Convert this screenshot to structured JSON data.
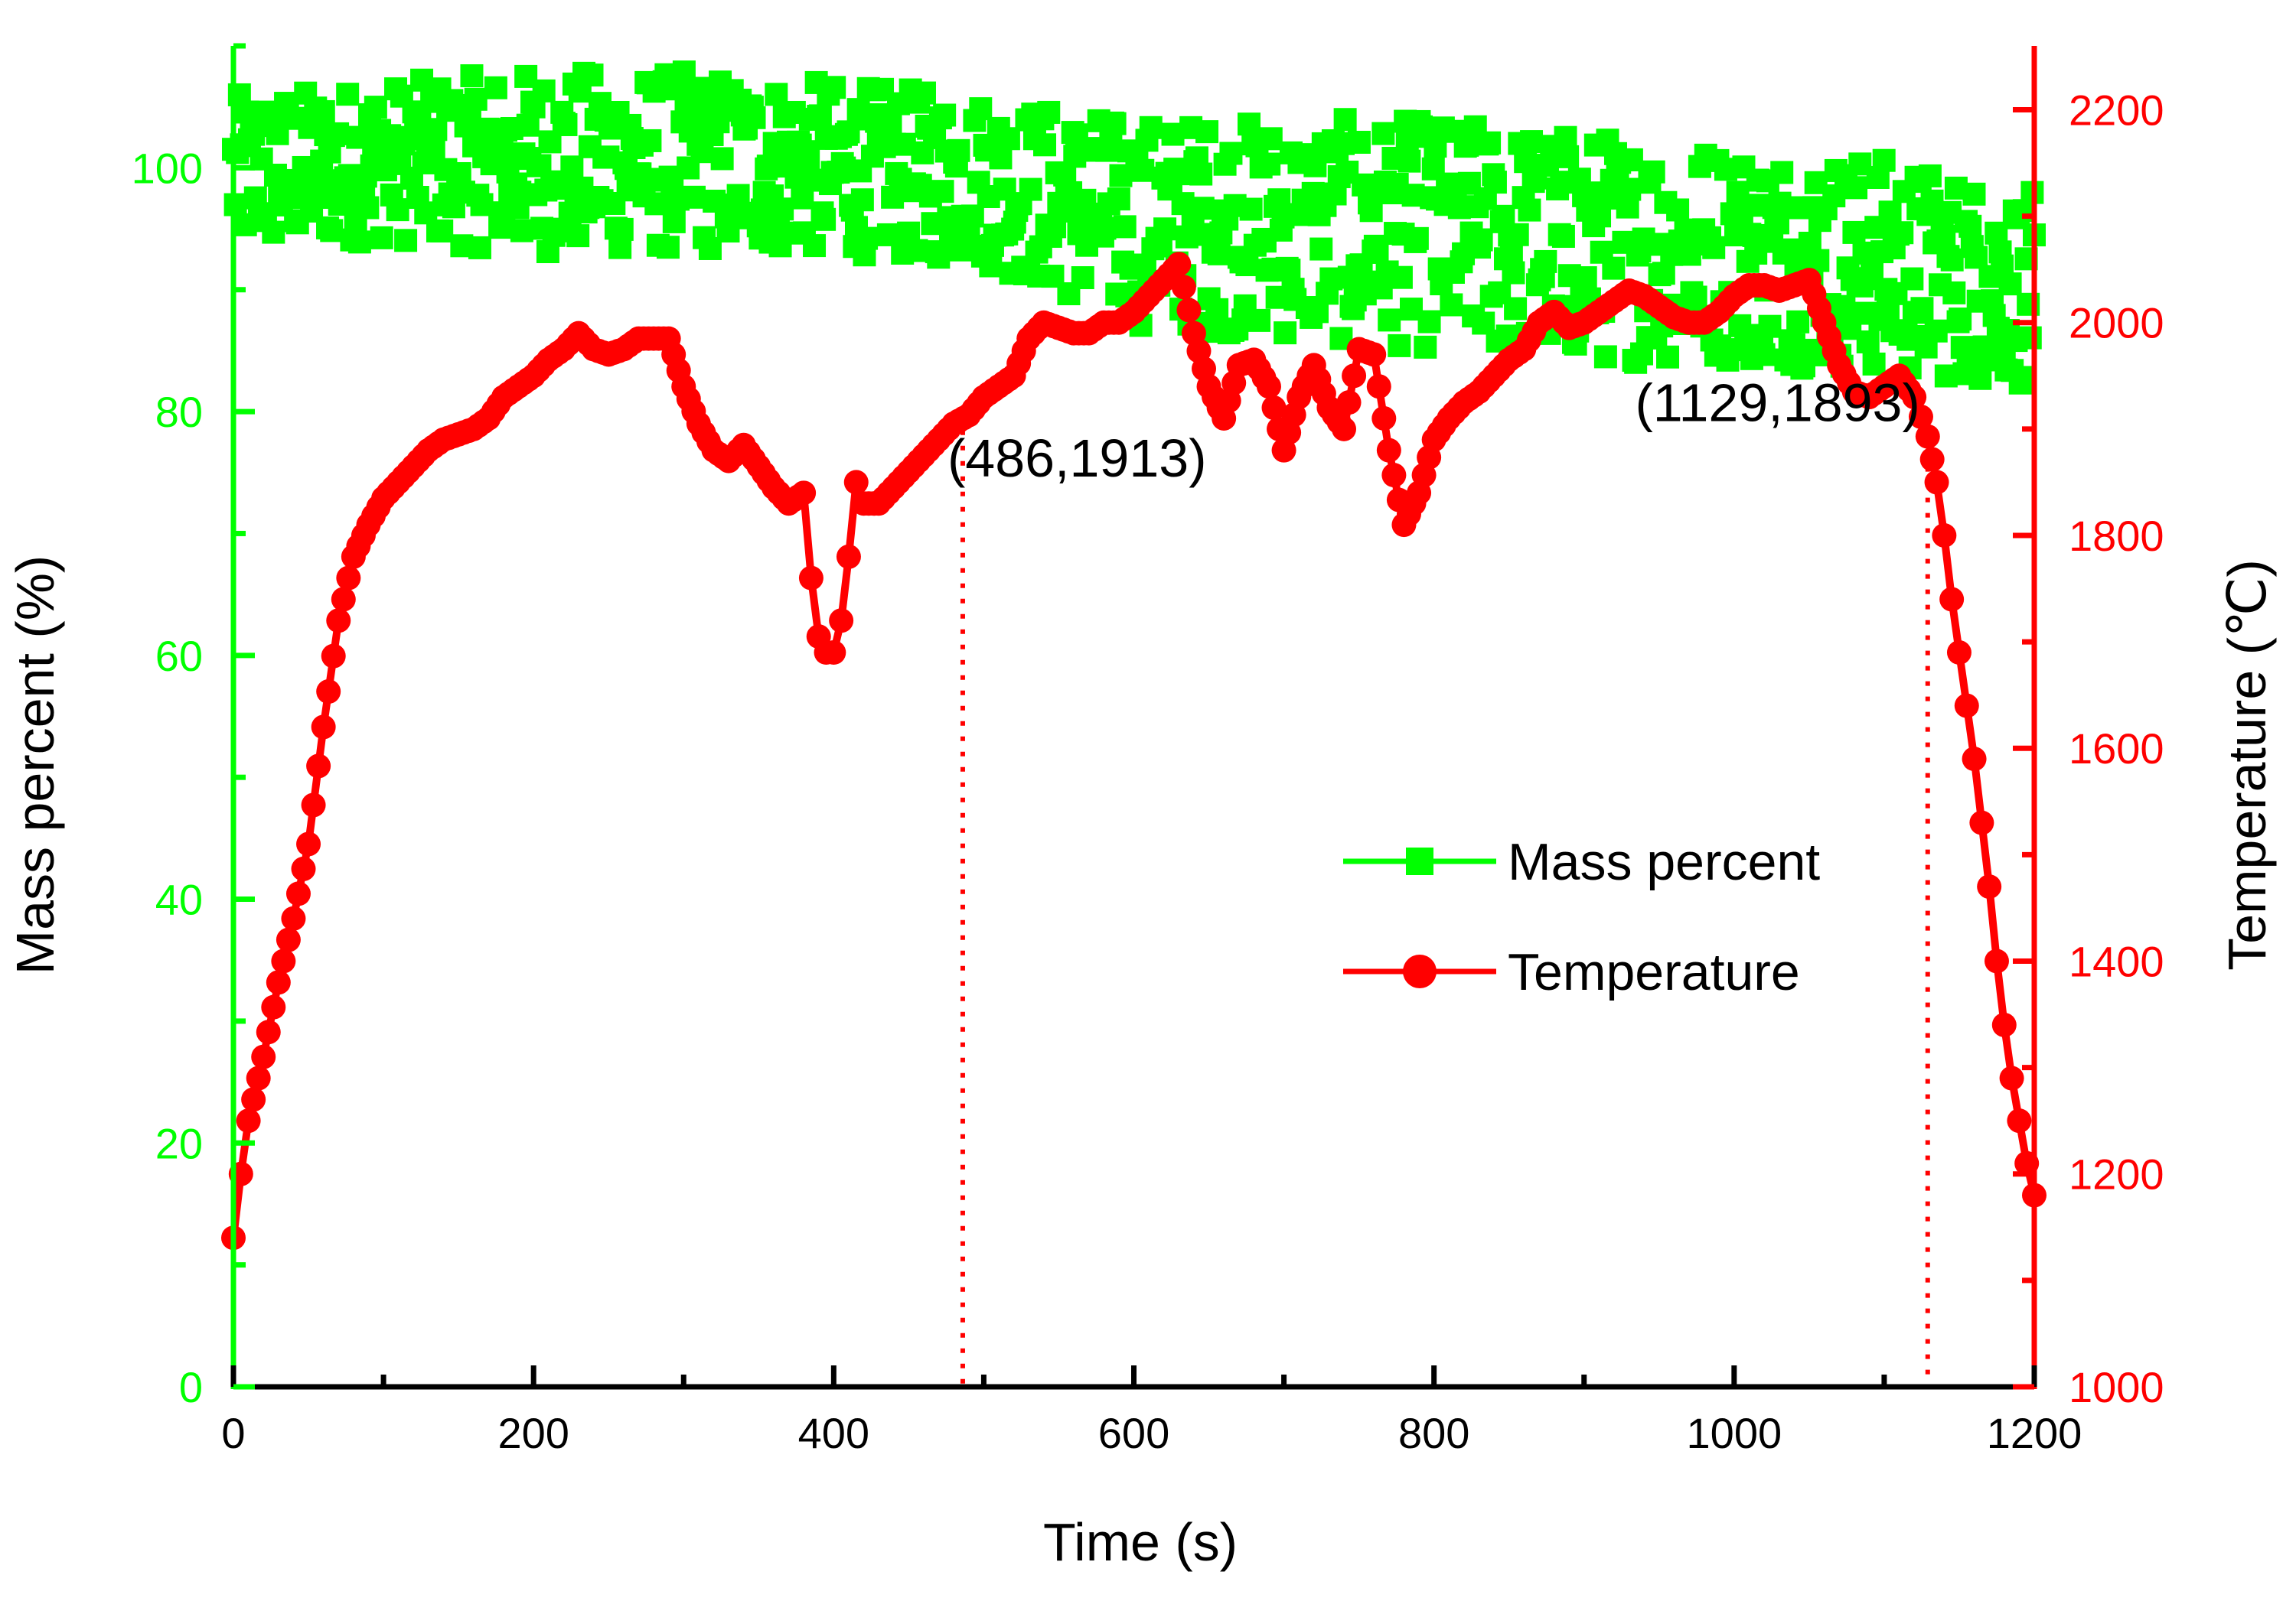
{
  "colors": {
    "mass": "#00ff00",
    "temperature": "#ff0000",
    "axis": "#000000",
    "background": "#ffffff"
  },
  "chart_data": {
    "type": "scatter",
    "title": "",
    "xlabel": "Time (s)",
    "ylabel_left": "Mass percent (%)",
    "ylabel_right": "Temperature (℃)",
    "xlim": [
      0,
      1200
    ],
    "ylim_left": [
      0,
      110
    ],
    "ylim_right": [
      1000,
      2260
    ],
    "x_ticks": [
      "0",
      "200",
      "400",
      "600",
      "800",
      "1000",
      "1200"
    ],
    "y_left_ticks": [
      "0",
      "20",
      "40",
      "60",
      "80",
      "100"
    ],
    "y_right_ticks": [
      "1000",
      "1200",
      "1400",
      "1600",
      "1800",
      "2000",
      "2200"
    ],
    "grid": false,
    "legend_position": "center-right",
    "legend": [
      {
        "name": "Mass percent",
        "marker": "square",
        "color": "#00ff00"
      },
      {
        "name": "Temperature",
        "marker": "circle",
        "color": "#ff0000"
      }
    ],
    "annotations": [
      {
        "label": "(486,1913)",
        "x": 486,
        "y": 1913
      },
      {
        "label": "(1129,1893)",
        "x": 1129,
        "y": 1893
      }
    ],
    "series": [
      {
        "name": "Mass percent",
        "axis": "left",
        "marker": "square",
        "color": "#00ff00",
        "trend": {
          "x": [
            0,
            100,
            200,
            300,
            400,
            500,
            600,
            700,
            800,
            900,
            1000,
            1100,
            1200
          ],
          "upper": [
            106,
            107,
            108,
            108,
            107,
            106,
            104,
            104,
            104,
            103,
            102,
            101,
            98
          ],
          "lower": [
            93,
            94,
            93,
            93,
            93,
            92,
            87,
            86,
            85,
            84,
            84,
            83,
            82
          ]
        }
      },
      {
        "name": "Temperature",
        "axis": "right",
        "marker": "circle",
        "color": "#ff0000",
        "x": [
          0,
          5,
          10,
          20,
          30,
          40,
          50,
          60,
          70,
          80,
          90,
          100,
          110,
          120,
          130,
          140,
          150,
          160,
          170,
          180,
          190,
          200,
          210,
          220,
          230,
          240,
          250,
          260,
          270,
          280,
          290,
          300,
          310,
          320,
          330,
          340,
          350,
          360,
          370,
          380,
          385,
          390,
          395,
          400,
          405,
          410,
          415,
          420,
          430,
          440,
          450,
          460,
          470,
          480,
          490,
          500,
          510,
          520,
          530,
          540,
          550,
          560,
          570,
          580,
          590,
          600,
          610,
          620,
          630,
          640,
          650,
          660,
          670,
          680,
          690,
          700,
          710,
          720,
          730,
          740,
          750,
          760,
          770,
          780,
          790,
          800,
          810,
          820,
          830,
          840,
          850,
          860,
          870,
          880,
          890,
          900,
          910,
          920,
          930,
          940,
          950,
          960,
          970,
          980,
          990,
          1000,
          1010,
          1020,
          1030,
          1040,
          1050,
          1060,
          1070,
          1080,
          1090,
          1100,
          1110,
          1120,
          1129,
          1135,
          1140,
          1145,
          1150,
          1155,
          1160,
          1165,
          1170,
          1175,
          1180,
          1185,
          1190,
          1195,
          1200
        ],
        "y": [
          1140,
          1200,
          1250,
          1310,
          1380,
          1440,
          1510,
          1620,
          1720,
          1780,
          1810,
          1835,
          1850,
          1865,
          1880,
          1890,
          1895,
          1900,
          1910,
          1930,
          1940,
          1950,
          1965,
          1975,
          1990,
          1975,
          1970,
          1975,
          1985,
          1985,
          1985,
          1940,
          1905,
          1880,
          1870,
          1885,
          1865,
          1845,
          1830,
          1840,
          1760,
          1705,
          1690,
          1690,
          1720,
          1780,
          1850,
          1830,
          1830,
          1845,
          1860,
          1875,
          1890,
          1905,
          1913,
          1930,
          1940,
          1950,
          1985,
          2000,
          1995,
          1990,
          1990,
          2000,
          2000,
          2010,
          2025,
          2040,
          2055,
          1990,
          1940,
          1910,
          1960,
          1965,
          1940,
          1880,
          1930,
          1960,
          1920,
          1900,
          1975,
          1970,
          1880,
          1810,
          1840,
          1890,
          1910,
          1925,
          1935,
          1950,
          1965,
          1975,
          2000,
          2010,
          1995,
          2000,
          2010,
          2020,
          2030,
          2025,
          2015,
          2005,
          2000,
          2000,
          2010,
          2025,
          2035,
          2035,
          2030,
          2035,
          2040,
          2000,
          1960,
          1935,
          1930,
          1940,
          1950,
          1930,
          1893,
          1850,
          1800,
          1740,
          1690,
          1640,
          1590,
          1530,
          1470,
          1400,
          1340,
          1290,
          1250,
          1210,
          1180
        ]
      }
    ]
  }
}
